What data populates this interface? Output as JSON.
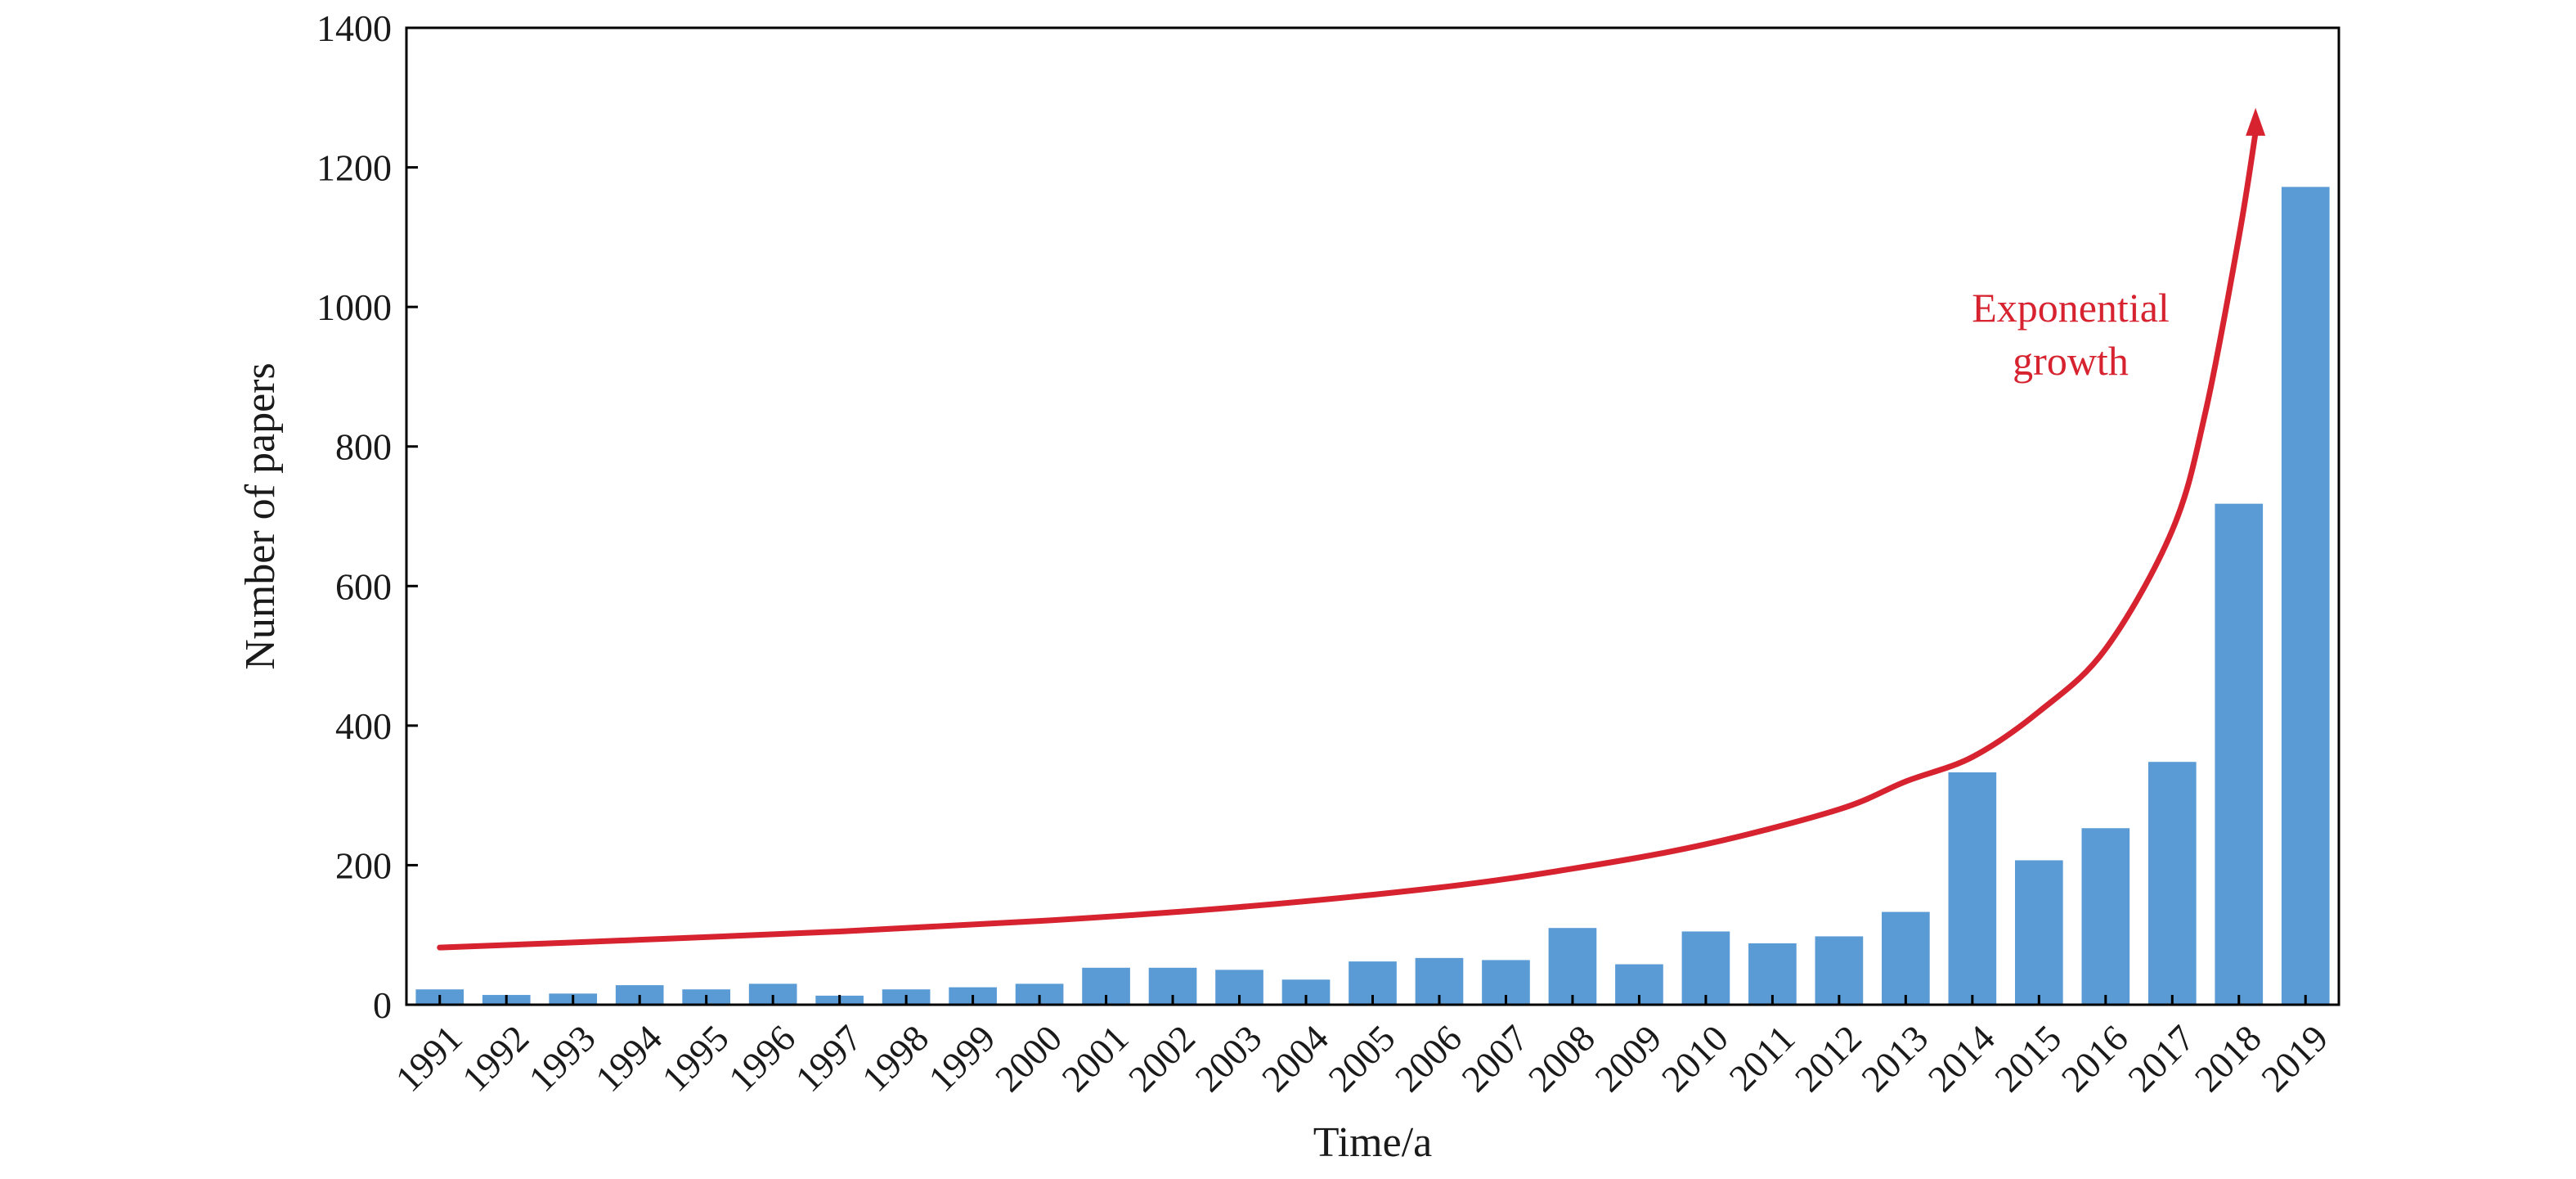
{
  "chart_data": {
    "type": "bar",
    "title": "",
    "xlabel": "Time/a",
    "ylabel": "Number of papers",
    "ylim": [
      0,
      1400
    ],
    "yticks": [
      0,
      200,
      400,
      600,
      800,
      1000,
      1200,
      1400
    ],
    "grid": false,
    "legend": "none",
    "categories": [
      "1991",
      "1992",
      "1993",
      "1994",
      "1995",
      "1996",
      "1997",
      "1998",
      "1999",
      "2000",
      "2001",
      "2002",
      "2003",
      "2004",
      "2005",
      "2006",
      "2007",
      "2008",
      "2009",
      "2010",
      "2011",
      "2012",
      "2013",
      "2014",
      "2015",
      "2016",
      "2017",
      "2018",
      "2019"
    ],
    "series": [
      {
        "color": "#5b9bd5",
        "values": [
          22,
          14,
          16,
          28,
          22,
          30,
          13,
          22,
          25,
          30,
          53,
          53,
          50,
          36,
          62,
          67,
          64,
          110,
          58,
          105,
          88,
          98,
          133,
          333,
          207,
          253,
          348,
          718,
          1172
        ]
      }
    ],
    "annotations": [
      {
        "text_line1": "Exponential",
        "text_line2": "growth",
        "color": "#d6232f",
        "trend_curve": {
          "x": [
            "1991",
            "1994",
            "1997",
            "2000",
            "2003",
            "2006",
            "2008",
            "2010",
            "2012",
            "2013",
            "2014",
            "2015",
            "2016",
            "2017",
            "2017.5",
            "2018",
            "2018.25"
          ],
          "y": [
            82,
            93,
            105,
            120,
            140,
            168,
            195,
            230,
            280,
            320,
            355,
            420,
            510,
            680,
            850,
            1100,
            1250
          ]
        }
      }
    ]
  }
}
